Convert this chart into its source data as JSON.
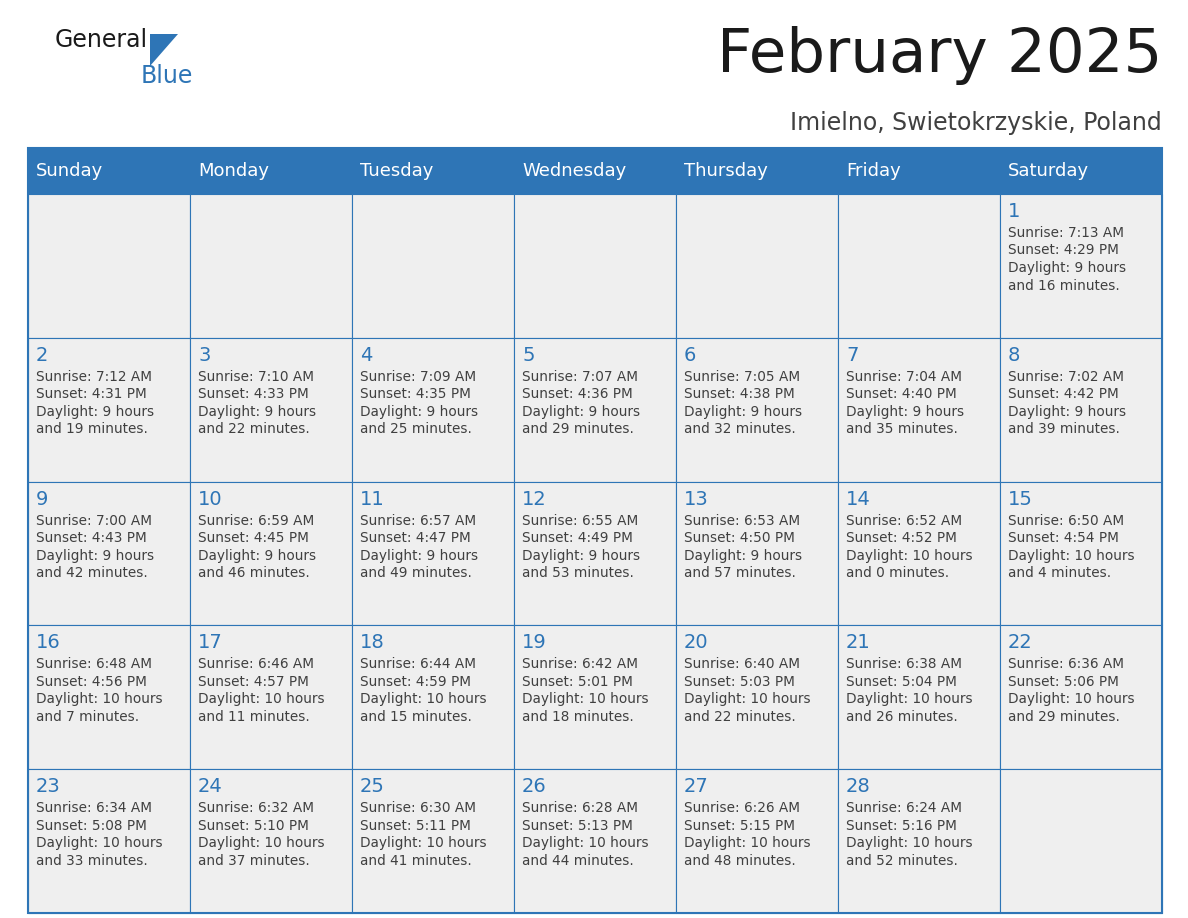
{
  "title": "February 2025",
  "subtitle": "Imielno, Swietokrzyskie, Poland",
  "days_of_week": [
    "Sunday",
    "Monday",
    "Tuesday",
    "Wednesday",
    "Thursday",
    "Friday",
    "Saturday"
  ],
  "header_bg": "#2E75B6",
  "header_text": "#FFFFFF",
  "cell_bg": "#EFEFEF",
  "border_color": "#2E75B6",
  "day_number_color": "#2E75B6",
  "text_color": "#404040",
  "title_color": "#1a1a1a",
  "subtitle_color": "#404040",
  "logo_general_color": "#1a1a1a",
  "logo_blue_color": "#2E75B6",
  "calendar_data": [
    [
      null,
      null,
      null,
      null,
      null,
      null,
      {
        "day": 1,
        "sunrise": "7:13 AM",
        "sunset": "4:29 PM",
        "daylight": "9 hours",
        "daylight2": "and 16 minutes."
      }
    ],
    [
      {
        "day": 2,
        "sunrise": "7:12 AM",
        "sunset": "4:31 PM",
        "daylight": "9 hours",
        "daylight2": "and 19 minutes."
      },
      {
        "day": 3,
        "sunrise": "7:10 AM",
        "sunset": "4:33 PM",
        "daylight": "9 hours",
        "daylight2": "and 22 minutes."
      },
      {
        "day": 4,
        "sunrise": "7:09 AM",
        "sunset": "4:35 PM",
        "daylight": "9 hours",
        "daylight2": "and 25 minutes."
      },
      {
        "day": 5,
        "sunrise": "7:07 AM",
        "sunset": "4:36 PM",
        "daylight": "9 hours",
        "daylight2": "and 29 minutes."
      },
      {
        "day": 6,
        "sunrise": "7:05 AM",
        "sunset": "4:38 PM",
        "daylight": "9 hours",
        "daylight2": "and 32 minutes."
      },
      {
        "day": 7,
        "sunrise": "7:04 AM",
        "sunset": "4:40 PM",
        "daylight": "9 hours",
        "daylight2": "and 35 minutes."
      },
      {
        "day": 8,
        "sunrise": "7:02 AM",
        "sunset": "4:42 PM",
        "daylight": "9 hours",
        "daylight2": "and 39 minutes."
      }
    ],
    [
      {
        "day": 9,
        "sunrise": "7:00 AM",
        "sunset": "4:43 PM",
        "daylight": "9 hours",
        "daylight2": "and 42 minutes."
      },
      {
        "day": 10,
        "sunrise": "6:59 AM",
        "sunset": "4:45 PM",
        "daylight": "9 hours",
        "daylight2": "and 46 minutes."
      },
      {
        "day": 11,
        "sunrise": "6:57 AM",
        "sunset": "4:47 PM",
        "daylight": "9 hours",
        "daylight2": "and 49 minutes."
      },
      {
        "day": 12,
        "sunrise": "6:55 AM",
        "sunset": "4:49 PM",
        "daylight": "9 hours",
        "daylight2": "and 53 minutes."
      },
      {
        "day": 13,
        "sunrise": "6:53 AM",
        "sunset": "4:50 PM",
        "daylight": "9 hours",
        "daylight2": "and 57 minutes."
      },
      {
        "day": 14,
        "sunrise": "6:52 AM",
        "sunset": "4:52 PM",
        "daylight": "10 hours",
        "daylight2": "and 0 minutes."
      },
      {
        "day": 15,
        "sunrise": "6:50 AM",
        "sunset": "4:54 PM",
        "daylight": "10 hours",
        "daylight2": "and 4 minutes."
      }
    ],
    [
      {
        "day": 16,
        "sunrise": "6:48 AM",
        "sunset": "4:56 PM",
        "daylight": "10 hours",
        "daylight2": "and 7 minutes."
      },
      {
        "day": 17,
        "sunrise": "6:46 AM",
        "sunset": "4:57 PM",
        "daylight": "10 hours",
        "daylight2": "and 11 minutes."
      },
      {
        "day": 18,
        "sunrise": "6:44 AM",
        "sunset": "4:59 PM",
        "daylight": "10 hours",
        "daylight2": "and 15 minutes."
      },
      {
        "day": 19,
        "sunrise": "6:42 AM",
        "sunset": "5:01 PM",
        "daylight": "10 hours",
        "daylight2": "and 18 minutes."
      },
      {
        "day": 20,
        "sunrise": "6:40 AM",
        "sunset": "5:03 PM",
        "daylight": "10 hours",
        "daylight2": "and 22 minutes."
      },
      {
        "day": 21,
        "sunrise": "6:38 AM",
        "sunset": "5:04 PM",
        "daylight": "10 hours",
        "daylight2": "and 26 minutes."
      },
      {
        "day": 22,
        "sunrise": "6:36 AM",
        "sunset": "5:06 PM",
        "daylight": "10 hours",
        "daylight2": "and 29 minutes."
      }
    ],
    [
      {
        "day": 23,
        "sunrise": "6:34 AM",
        "sunset": "5:08 PM",
        "daylight": "10 hours",
        "daylight2": "and 33 minutes."
      },
      {
        "day": 24,
        "sunrise": "6:32 AM",
        "sunset": "5:10 PM",
        "daylight": "10 hours",
        "daylight2": "and 37 minutes."
      },
      {
        "day": 25,
        "sunrise": "6:30 AM",
        "sunset": "5:11 PM",
        "daylight": "10 hours",
        "daylight2": "and 41 minutes."
      },
      {
        "day": 26,
        "sunrise": "6:28 AM",
        "sunset": "5:13 PM",
        "daylight": "10 hours",
        "daylight2": "and 44 minutes."
      },
      {
        "day": 27,
        "sunrise": "6:26 AM",
        "sunset": "5:15 PM",
        "daylight": "10 hours",
        "daylight2": "and 48 minutes."
      },
      {
        "day": 28,
        "sunrise": "6:24 AM",
        "sunset": "5:16 PM",
        "daylight": "10 hours",
        "daylight2": "and 52 minutes."
      },
      null
    ]
  ]
}
